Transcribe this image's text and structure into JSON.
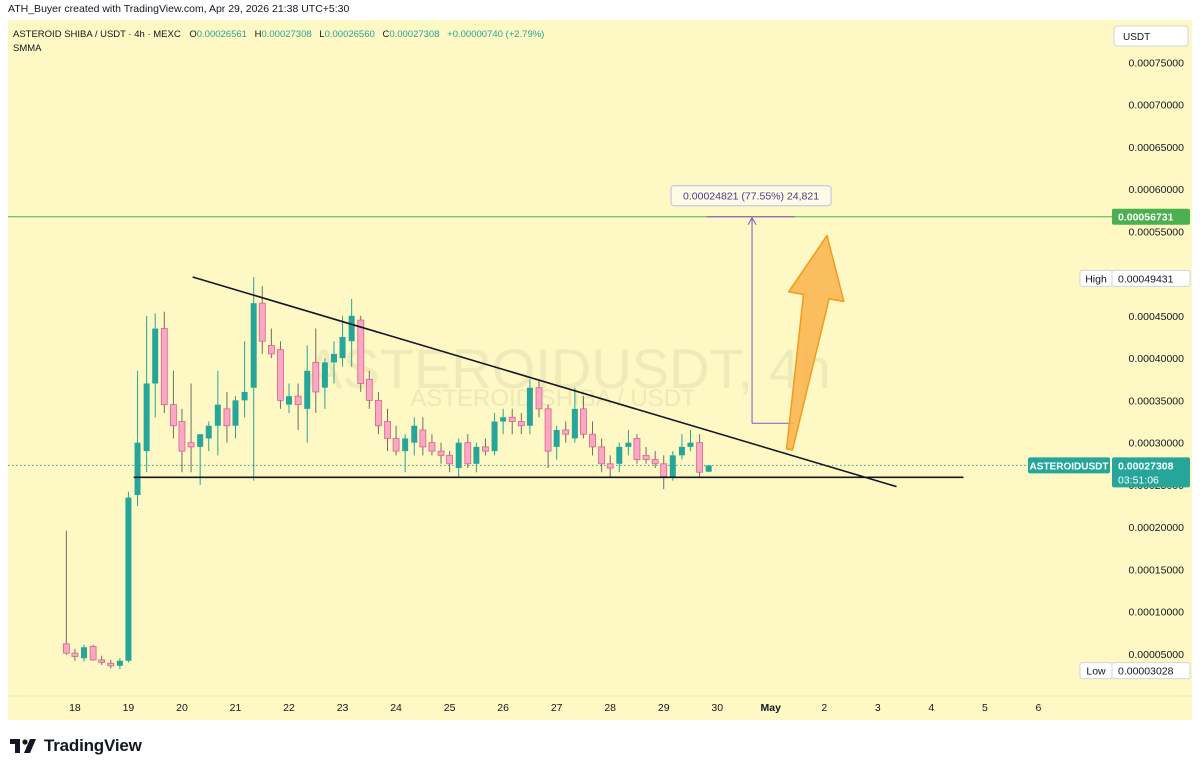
{
  "credit": "ATH_Buyer created with TradingView.com, Apr 29, 2026 21:38 UTC+5:30",
  "brand": {
    "name": "TradingView",
    "logo_icon": "tradingview-logo-icon"
  },
  "colors": {
    "background": "#fdf8c4",
    "bull": "#26a69a",
    "bear": "#f7a9c6",
    "bear_outline": "#e0608c",
    "trendline": "#131722",
    "target_line": "#4caf50",
    "measure": "#7e57c2",
    "arrow_fill": "#f9b44e",
    "arrow_stroke": "#f39a1c"
  },
  "chart_data": {
    "type": "candlestick",
    "header": {
      "symbol": "ASTEROID SHIBA / USDT · 4h · MEXC",
      "o_label": "O",
      "o": "0.00026561",
      "h_label": "H",
      "h": "0.00027308",
      "l_label": "L",
      "l": "0.00026560",
      "c_label": "C",
      "c": "0.00027308",
      "change": "+0.00000740 (+2.79%)",
      "indicator": "SMMA"
    },
    "watermark": {
      "main": "ASTEROIDUSDT, 4h",
      "sub": "ASTEROID SHIBA / USDT"
    },
    "currency": "USDT",
    "y_axis": {
      "scale": "linear",
      "ylim": [
        3e-07,
        0.0008
      ],
      "ticks": [
        "0.00005000",
        "0.00010000",
        "0.00015000",
        "0.00020000",
        "0.00025000",
        "0.00030000",
        "0.00035000",
        "0.00040000",
        "0.00045000",
        "0.00050000",
        "0.00055000",
        "0.00060000",
        "0.00065000",
        "0.00070000",
        "0.00075000"
      ]
    },
    "x_axis": {
      "ticks": [
        {
          "label": "18",
          "day": 18
        },
        {
          "label": "19",
          "day": 19
        },
        {
          "label": "20",
          "day": 20
        },
        {
          "label": "21",
          "day": 21
        },
        {
          "label": "22",
          "day": 22
        },
        {
          "label": "23",
          "day": 23
        },
        {
          "label": "24",
          "day": 24
        },
        {
          "label": "25",
          "day": 25
        },
        {
          "label": "26",
          "day": 26
        },
        {
          "label": "27",
          "day": 27
        },
        {
          "label": "28",
          "day": 28
        },
        {
          "label": "29",
          "day": 29
        },
        {
          "label": "30",
          "day": 30
        },
        {
          "label": "May",
          "day": 31,
          "bold": true
        },
        {
          "label": "2",
          "day": 32
        },
        {
          "label": "3",
          "day": 33
        },
        {
          "label": "4",
          "day": 34
        },
        {
          "label": "5",
          "day": 35
        },
        {
          "label": "6",
          "day": 36
        }
      ]
    },
    "candles": [
      {
        "t": 17.84,
        "o": 6.2e-05,
        "h": 0.000196,
        "l": 4.9e-05,
        "c": 5.1e-05
      },
      {
        "t": 18.0,
        "o": 5.1e-05,
        "h": 5.6e-05,
        "l": 4.2e-05,
        "c": 4.7e-05
      },
      {
        "t": 18.17,
        "o": 4.5e-05,
        "h": 6.1e-05,
        "l": 4.1e-05,
        "c": 5.8e-05
      },
      {
        "t": 18.34,
        "o": 5.9e-05,
        "h": 6.1e-05,
        "l": 4.2e-05,
        "c": 4.3e-05
      },
      {
        "t": 18.5,
        "o": 4.3e-05,
        "h": 4.8e-05,
        "l": 3.7e-05,
        "c": 4e-05
      },
      {
        "t": 18.67,
        "o": 3.9e-05,
        "h": 4.3e-05,
        "l": 3.3e-05,
        "c": 3.6e-05
      },
      {
        "t": 18.84,
        "o": 3.6e-05,
        "h": 4.5e-05,
        "l": 3.2e-05,
        "c": 4.2e-05
      },
      {
        "t": 19.0,
        "o": 4.2e-05,
        "h": 0.000242,
        "l": 4e-05,
        "c": 0.000235
      },
      {
        "t": 19.17,
        "o": 0.000238,
        "h": 0.000385,
        "l": 0.000225,
        "c": 0.0003
      },
      {
        "t": 19.34,
        "o": 0.00029,
        "h": 0.00045,
        "l": 0.000265,
        "c": 0.00037
      },
      {
        "t": 19.5,
        "o": 0.00037,
        "h": 0.000453,
        "l": 0.00033,
        "c": 0.000435
      },
      {
        "t": 19.67,
        "o": 0.000435,
        "h": 0.000455,
        "l": 0.000335,
        "c": 0.000345
      },
      {
        "t": 19.84,
        "o": 0.000345,
        "h": 0.000385,
        "l": 0.000305,
        "c": 0.00032
      },
      {
        "t": 20.0,
        "o": 0.000325,
        "h": 0.00034,
        "l": 0.000265,
        "c": 0.00029
      },
      {
        "t": 20.17,
        "o": 0.0003,
        "h": 0.00037,
        "l": 0.000265,
        "c": 0.000295
      },
      {
        "t": 20.34,
        "o": 0.000295,
        "h": 0.00031,
        "l": 0.00025,
        "c": 0.00031
      },
      {
        "t": 20.5,
        "o": 0.000305,
        "h": 0.000325,
        "l": 0.00029,
        "c": 0.00032
      },
      {
        "t": 20.67,
        "o": 0.00032,
        "h": 0.000385,
        "l": 0.000285,
        "c": 0.000345
      },
      {
        "t": 20.84,
        "o": 0.00034,
        "h": 0.00036,
        "l": 0.0003,
        "c": 0.00032
      },
      {
        "t": 21.0,
        "o": 0.00032,
        "h": 0.000355,
        "l": 0.000305,
        "c": 0.00035
      },
      {
        "t": 21.17,
        "o": 0.00035,
        "h": 0.00042,
        "l": 0.00033,
        "c": 0.00036
      },
      {
        "t": 21.34,
        "o": 0.000365,
        "h": 0.000496,
        "l": 0.000255,
        "c": 0.000465
      },
      {
        "t": 21.5,
        "o": 0.000465,
        "h": 0.000485,
        "l": 0.000405,
        "c": 0.00042
      },
      {
        "t": 21.67,
        "o": 0.000415,
        "h": 0.000435,
        "l": 0.0004,
        "c": 0.000405
      },
      {
        "t": 21.84,
        "o": 0.00041,
        "h": 0.00042,
        "l": 0.00034,
        "c": 0.00035
      },
      {
        "t": 22.0,
        "o": 0.000345,
        "h": 0.00037,
        "l": 0.000335,
        "c": 0.000355
      },
      {
        "t": 22.17,
        "o": 0.000355,
        "h": 0.00037,
        "l": 0.000315,
        "c": 0.000345
      },
      {
        "t": 22.34,
        "o": 0.00034,
        "h": 0.000415,
        "l": 0.0003,
        "c": 0.000385
      },
      {
        "t": 22.5,
        "o": 0.000395,
        "h": 0.000435,
        "l": 0.000335,
        "c": 0.00036
      },
      {
        "t": 22.67,
        "o": 0.000365,
        "h": 0.0004,
        "l": 0.00034,
        "c": 0.000395
      },
      {
        "t": 22.84,
        "o": 0.000395,
        "h": 0.00042,
        "l": 0.00037,
        "c": 0.000405
      },
      {
        "t": 23.0,
        "o": 0.0004,
        "h": 0.00045,
        "l": 0.00039,
        "c": 0.000425
      },
      {
        "t": 23.17,
        "o": 0.00042,
        "h": 0.00047,
        "l": 0.00039,
        "c": 0.00045
      },
      {
        "t": 23.34,
        "o": 0.000445,
        "h": 0.00045,
        "l": 0.00036,
        "c": 0.00037
      },
      {
        "t": 23.5,
        "o": 0.000375,
        "h": 0.000385,
        "l": 0.00034,
        "c": 0.00035
      },
      {
        "t": 23.67,
        "o": 0.00035,
        "h": 0.00036,
        "l": 0.00031,
        "c": 0.00032
      },
      {
        "t": 23.84,
        "o": 0.000325,
        "h": 0.00034,
        "l": 0.00029,
        "c": 0.000305
      },
      {
        "t": 24.0,
        "o": 0.000305,
        "h": 0.00032,
        "l": 0.000285,
        "c": 0.00029
      },
      {
        "t": 24.17,
        "o": 0.00029,
        "h": 0.00031,
        "l": 0.000265,
        "c": 0.000305
      },
      {
        "t": 24.34,
        "o": 0.0003,
        "h": 0.00033,
        "l": 0.000285,
        "c": 0.00032
      },
      {
        "t": 24.5,
        "o": 0.000315,
        "h": 0.00033,
        "l": 0.000285,
        "c": 0.000295
      },
      {
        "t": 24.67,
        "o": 0.0003,
        "h": 0.00031,
        "l": 0.000285,
        "c": 0.00029
      },
      {
        "t": 24.84,
        "o": 0.00029,
        "h": 0.0003,
        "l": 0.000275,
        "c": 0.000285
      },
      {
        "t": 25.0,
        "o": 0.000285,
        "h": 0.00029,
        "l": 0.000265,
        "c": 0.000275
      },
      {
        "t": 25.17,
        "o": 0.00027,
        "h": 0.000305,
        "l": 0.00026,
        "c": 0.0003
      },
      {
        "t": 25.34,
        "o": 0.0003,
        "h": 0.00031,
        "l": 0.00027,
        "c": 0.000275
      },
      {
        "t": 25.5,
        "o": 0.000275,
        "h": 0.0003,
        "l": 0.000265,
        "c": 0.000295
      },
      {
        "t": 25.67,
        "o": 0.000295,
        "h": 0.000305,
        "l": 0.000285,
        "c": 0.00029
      },
      {
        "t": 25.84,
        "o": 0.00029,
        "h": 0.000335,
        "l": 0.000285,
        "c": 0.000325
      },
      {
        "t": 26.0,
        "o": 0.000325,
        "h": 0.00034,
        "l": 0.00031,
        "c": 0.00033
      },
      {
        "t": 26.17,
        "o": 0.00033,
        "h": 0.00034,
        "l": 0.00031,
        "c": 0.000325
      },
      {
        "t": 26.34,
        "o": 0.000325,
        "h": 0.000335,
        "l": 0.00031,
        "c": 0.00032
      },
      {
        "t": 26.5,
        "o": 0.00032,
        "h": 0.000375,
        "l": 0.00031,
        "c": 0.000365
      },
      {
        "t": 26.67,
        "o": 0.000365,
        "h": 0.000375,
        "l": 0.00033,
        "c": 0.00034
      },
      {
        "t": 26.84,
        "o": 0.00034,
        "h": 0.000345,
        "l": 0.00027,
        "c": 0.00029
      },
      {
        "t": 27.0,
        "o": 0.000295,
        "h": 0.00032,
        "l": 0.00028,
        "c": 0.000315
      },
      {
        "t": 27.17,
        "o": 0.000315,
        "h": 0.000325,
        "l": 0.0003,
        "c": 0.00031
      },
      {
        "t": 27.34,
        "o": 0.000305,
        "h": 0.000365,
        "l": 0.0003,
        "c": 0.00034
      },
      {
        "t": 27.5,
        "o": 0.00034,
        "h": 0.000355,
        "l": 0.000305,
        "c": 0.00031
      },
      {
        "t": 27.67,
        "o": 0.00031,
        "h": 0.000325,
        "l": 0.000285,
        "c": 0.000295
      },
      {
        "t": 27.84,
        "o": 0.000295,
        "h": 0.000305,
        "l": 0.000265,
        "c": 0.000275
      },
      {
        "t": 28.0,
        "o": 0.000275,
        "h": 0.000285,
        "l": 0.00026,
        "c": 0.00027
      },
      {
        "t": 28.17,
        "o": 0.000275,
        "h": 0.0003,
        "l": 0.000265,
        "c": 0.000295
      },
      {
        "t": 28.34,
        "o": 0.000295,
        "h": 0.000315,
        "l": 0.000285,
        "c": 0.0003
      },
      {
        "t": 28.5,
        "o": 0.000305,
        "h": 0.00031,
        "l": 0.000275,
        "c": 0.00028
      },
      {
        "t": 28.67,
        "o": 0.000285,
        "h": 0.000295,
        "l": 0.000275,
        "c": 0.00028
      },
      {
        "t": 28.84,
        "o": 0.00028,
        "h": 0.00029,
        "l": 0.00027,
        "c": 0.000275
      },
      {
        "t": 29.0,
        "o": 0.000275,
        "h": 0.000285,
        "l": 0.000245,
        "c": 0.00026
      },
      {
        "t": 29.17,
        "o": 0.00026,
        "h": 0.00029,
        "l": 0.000255,
        "c": 0.000285
      },
      {
        "t": 29.34,
        "o": 0.000285,
        "h": 0.00031,
        "l": 0.00028,
        "c": 0.000295
      },
      {
        "t": 29.5,
        "o": 0.000295,
        "h": 0.000315,
        "l": 0.00029,
        "c": 0.0003
      },
      {
        "t": 29.67,
        "o": 0.0003,
        "h": 0.00031,
        "l": 0.00026,
        "c": 0.000265
      },
      {
        "t": 29.84,
        "o": 0.0002656,
        "h": 0.0002731,
        "l": 0.0002656,
        "c": 0.0002731
      }
    ],
    "drawings": {
      "descending_trendline": {
        "t0": 20.2,
        "p0": 0.000496,
        "t1": 33.35,
        "p1": 0.000248
      },
      "support_line": {
        "t0": 19.1,
        "t1": 34.6,
        "price": 0.000259
      },
      "target_line": {
        "price": 0.00056731
      },
      "measure": {
        "t": 30.65,
        "p0": 0.000323,
        "p1": 0.00056731,
        "t_end": 31.45,
        "label": "0.00024821 (77.55%) 24,821"
      },
      "arrow": {
        "t_tail": 31.35,
        "p_tail": 0.000292,
        "t_head": 32.05,
        "p_head": 0.000545
      }
    },
    "price_labels": {
      "target": "0.00056731",
      "high_label": "High",
      "high": "0.00049431",
      "high_price": 0.00049431,
      "low_label": "Low",
      "low": "0.00003028",
      "low_price": 3.028e-05,
      "last_symbol": "ASTEROIDUSDT",
      "last": "0.00027308",
      "last_price": 0.00027308,
      "countdown": "03:51:06"
    }
  }
}
